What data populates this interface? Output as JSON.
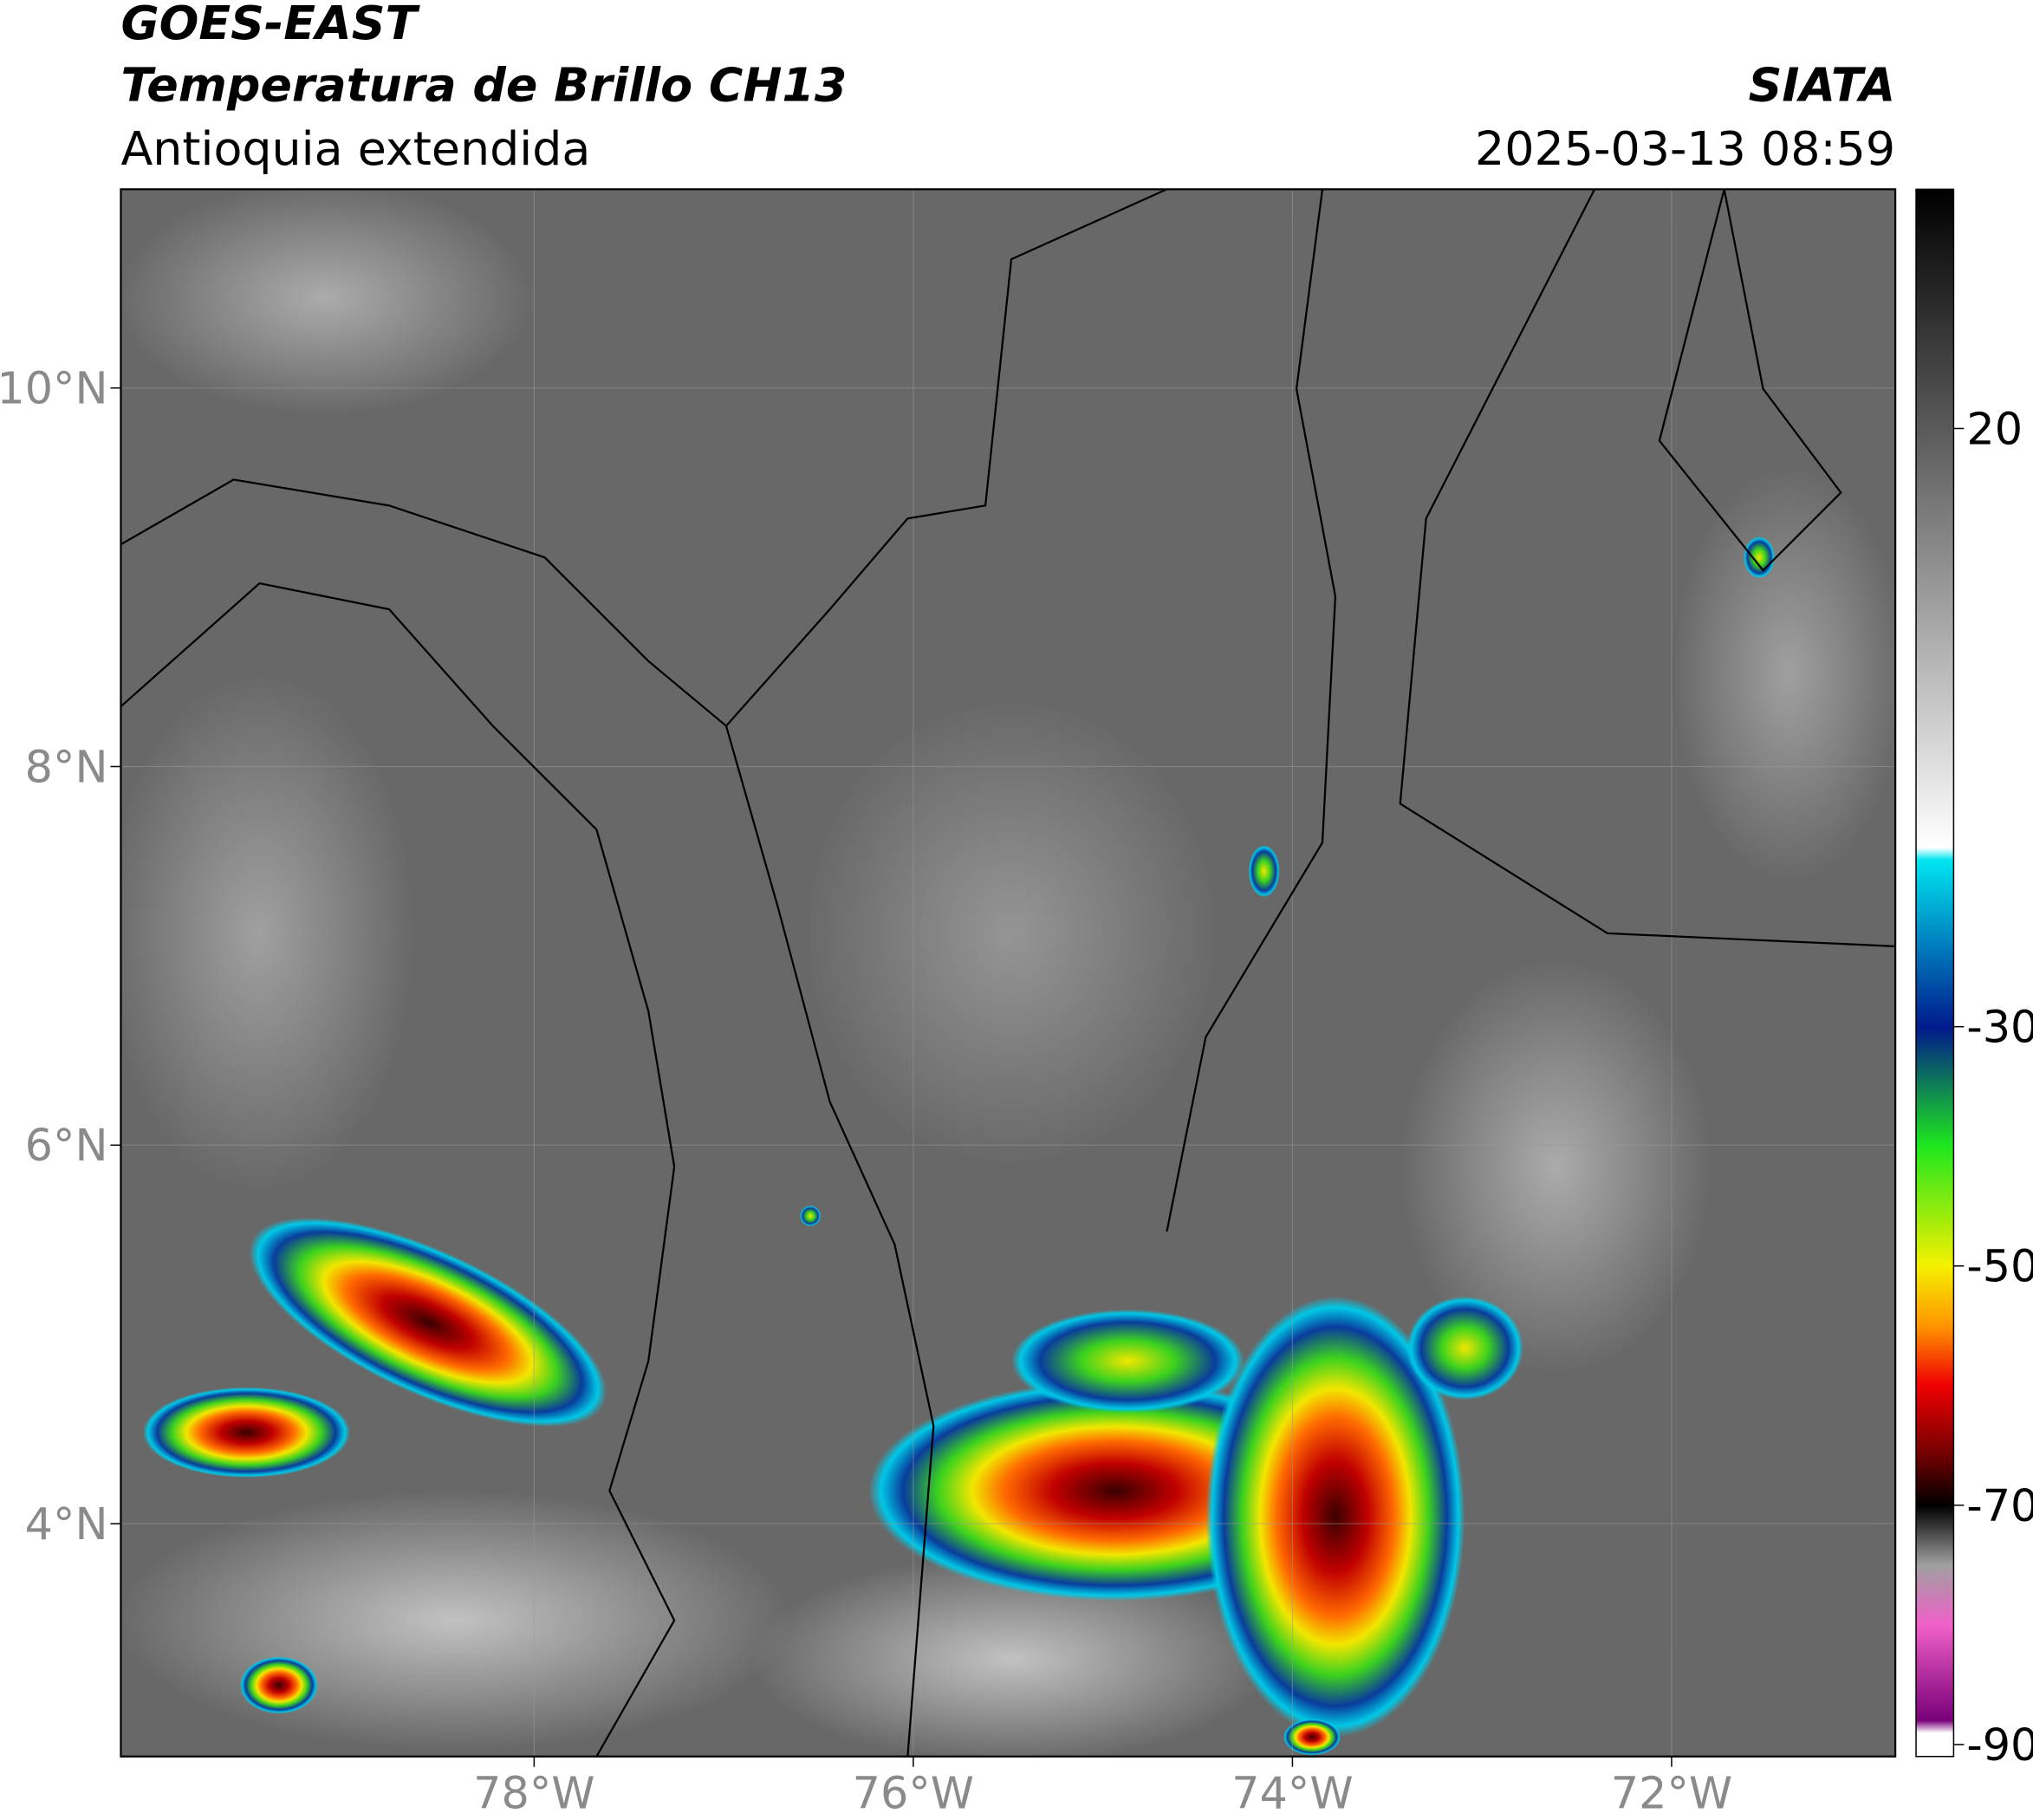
{
  "header": {
    "title": "GOES-EAST",
    "subtitle": "Temperatura de Brillo CH13",
    "region": "Antioquia extendida",
    "source": "SIATA",
    "timestamp": "2025-03-13 08:59"
  },
  "map": {
    "lonlim": [
      -80.18,
      -70.82
    ],
    "latlim": [
      2.77,
      11.05
    ],
    "lon_ticks": [
      {
        "value": -78,
        "label": "78°W"
      },
      {
        "value": -76,
        "label": "76°W"
      },
      {
        "value": -74,
        "label": "74°W"
      },
      {
        "value": -72,
        "label": "72°W"
      }
    ],
    "lat_ticks": [
      {
        "value": 10,
        "label": "10°N"
      },
      {
        "value": 8,
        "label": "8°N"
      },
      {
        "value": 6,
        "label": "6°N"
      },
      {
        "value": 4,
        "label": "4°N"
      }
    ],
    "grid": true
  },
  "colorbar": {
    "lim": [
      -91,
      40
    ],
    "ticks": [
      20,
      -30,
      -50,
      -70,
      -90
    ]
  }
}
